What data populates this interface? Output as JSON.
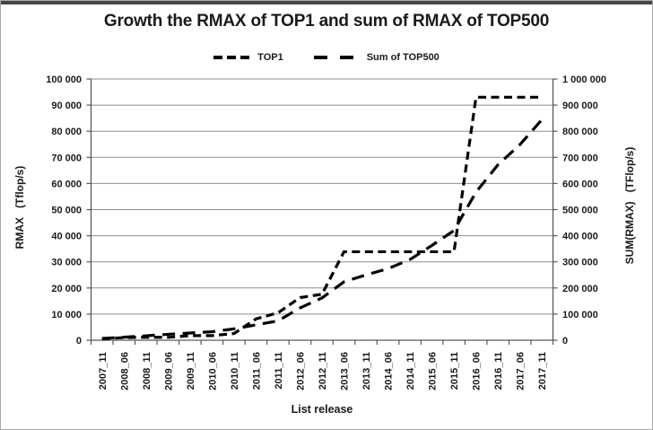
{
  "chart_data": {
    "type": "line",
    "title": "Growth the RMAX of TOP1 and sum of RMAX of TOP500",
    "xlabel": "List release",
    "ylabel_left": "RMAX   (Tflop/s)",
    "ylabel_right": "SUM(RMAX)   (TFlop/s)",
    "legend_position": "top-center",
    "grid": "horizontal",
    "categories": [
      "2007_11",
      "2008_06",
      "2008_11",
      "2009_06",
      "2009_11",
      "2010_06",
      "2010_11",
      "2011_06",
      "2011_11",
      "2012_06",
      "2012_11",
      "2013_06",
      "2013_11",
      "2014_06",
      "2014_11",
      "2015_06",
      "2015_11",
      "2016_06",
      "2016_11",
      "2017_06",
      "2017_11"
    ],
    "series": [
      {
        "name": "TOP1",
        "axis": "left",
        "dash": "short",
        "values": [
          478,
          1026,
          1105,
          1105,
          1759,
          1759,
          2566,
          8162,
          10510,
          16325,
          17590,
          33862,
          33862,
          33862,
          33862,
          33862,
          33862,
          93015,
          93015,
          93015,
          93015
        ]
      },
      {
        "name": "Sum of TOP500",
        "axis": "right",
        "dash": "long",
        "values": [
          6970,
          11700,
          16950,
          22600,
          27600,
          32400,
          43700,
          58700,
          74200,
          123400,
          162000,
          223700,
          250000,
          274000,
          309000,
          363000,
          420000,
          566700,
          672000,
          749000,
          845000
        ]
      }
    ],
    "axes": {
      "left": {
        "min": 0,
        "max": 100000,
        "step": 10000,
        "tick_labels": [
          "0",
          "10 000",
          "20 000",
          "30 000",
          "40 000",
          "50 000",
          "60 000",
          "70 000",
          "80 000",
          "90 000",
          "100 000"
        ]
      },
      "right": {
        "min": 0,
        "max": 1000000,
        "step": 100000,
        "tick_labels": [
          "0",
          "100 000",
          "200 000",
          "300 000",
          "400 000",
          "500 000",
          "600 000",
          "700 000",
          "800 000",
          "900 000",
          "1 000 000"
        ]
      }
    },
    "colors": {
      "line": "#000000",
      "grid": "#8f8f8f",
      "axis": "#595959",
      "text": "#1a1a1a",
      "background": "#ffffff"
    }
  }
}
